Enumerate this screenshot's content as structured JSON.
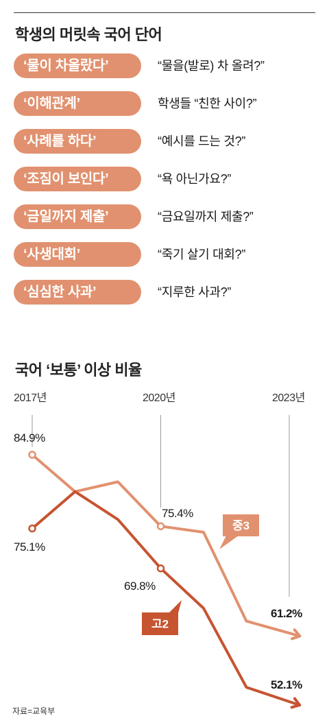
{
  "vocab": {
    "title": "학생의 머릿속 국어 단어",
    "items": [
      {
        "word": "‘물이 차올랐다’",
        "meaning": "“물을(발로) 차 올려?”"
      },
      {
        "word": "‘이해관계’",
        "meaning": "학생들 “친한 사이?”"
      },
      {
        "word": "‘사례를 하다’",
        "meaning": "“예시를 드는 것?”"
      },
      {
        "word": "‘조짐이 보인다’",
        "meaning": "“욕 아닌가요?”"
      },
      {
        "word": "‘금일까지 제출’",
        "meaning": "“금요일까지 제출?”"
      },
      {
        "word": "‘사생대회’",
        "meaning": "“죽기 살기 대회?”"
      },
      {
        "word": "‘심심한 사과’",
        "meaning": "“지루한 사과?”"
      }
    ]
  },
  "chart_title": "국어 ‘보통’ 이상 비율",
  "chart_data": {
    "type": "line",
    "title": "국어 ‘보통’ 이상 비율",
    "x": [
      2017,
      2018,
      2019,
      2020,
      2021,
      2022,
      2023
    ],
    "tick_labels": [
      "2017년",
      "2020년",
      "2023년"
    ],
    "ylim": [
      48,
      90
    ],
    "series": [
      {
        "name": "중3",
        "color": "#e1916f",
        "values": [
          84.9,
          80.0,
          81.3,
          75.4,
          74.6,
          62.8,
          61.2
        ],
        "labels": [
          "84.9%",
          null,
          null,
          "75.4%",
          null,
          null,
          "61.2%"
        ]
      },
      {
        "name": "고2",
        "color": "#c65431",
        "values": [
          75.1,
          80.0,
          76.3,
          69.8,
          64.5,
          54.0,
          52.1
        ],
        "labels": [
          "75.1%",
          null,
          null,
          "69.8%",
          null,
          null,
          "52.1%"
        ]
      }
    ]
  },
  "source": "자료=교육부"
}
